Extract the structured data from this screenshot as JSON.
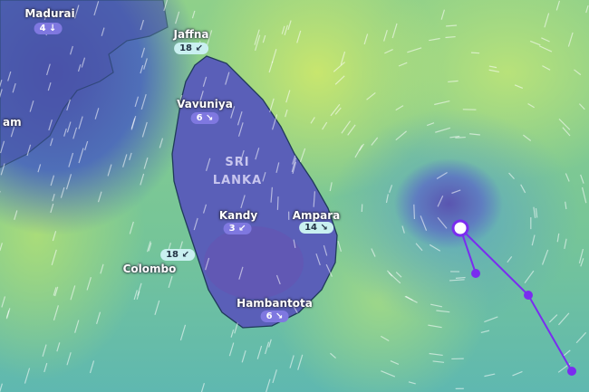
{
  "country_label": {
    "line1": "SRI",
    "line2": "LANKA"
  },
  "cities": [
    {
      "name": "Madurai",
      "wind": "4",
      "arrow": "↓"
    },
    {
      "name": "Jaffna",
      "wind": "18",
      "arrow": "↙"
    },
    {
      "name": "Vavuniya",
      "wind": "6",
      "arrow": "↘"
    },
    {
      "name": "Kandy",
      "wind": "3",
      "arrow": "↙"
    },
    {
      "name": "Ampara",
      "wind": "14",
      "arrow": "↘"
    },
    {
      "name": "Colombo",
      "wind": "18",
      "arrow": "↙"
    },
    {
      "name": "Hambantota",
      "wind": "6",
      "arrow": "↘"
    },
    {
      "name": "am"
    }
  ],
  "storm_track_color": "#7a2cf0"
}
